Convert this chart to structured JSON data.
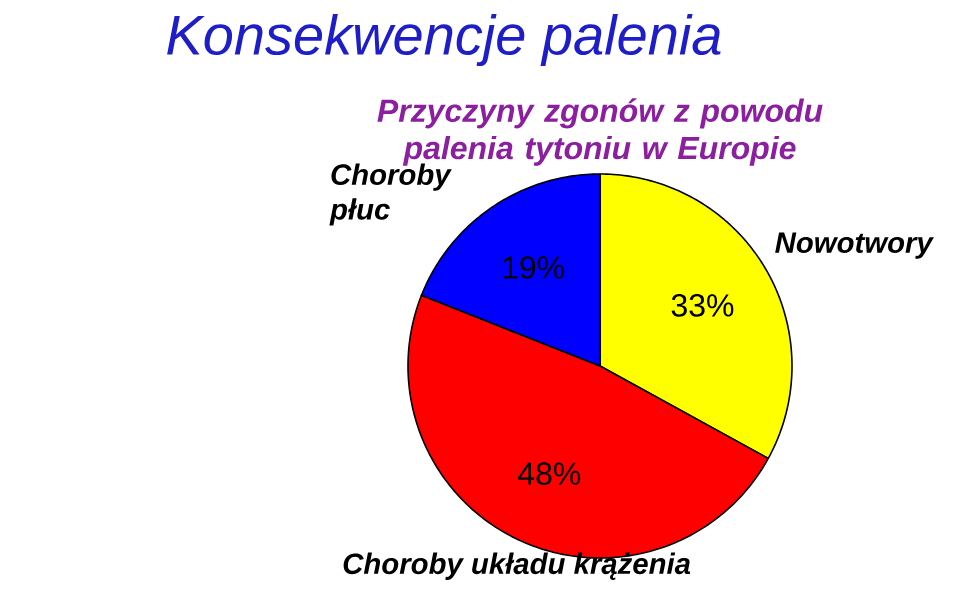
{
  "chart_data": {
    "type": "pie",
    "title": "Konsekwencje palenia",
    "subtitle": "Przyczyny zgonów z powodu palenia tytoniu w Europie",
    "categories": [
      "Nowotwory",
      "Choroby układu krążenia",
      "Choroby płuc"
    ],
    "values": [
      33,
      48,
      19
    ],
    "colors": [
      "#ffff00",
      "#ff0000",
      "#0000ff"
    ],
    "value_labels": [
      "33%",
      "48%",
      "19%"
    ]
  }
}
